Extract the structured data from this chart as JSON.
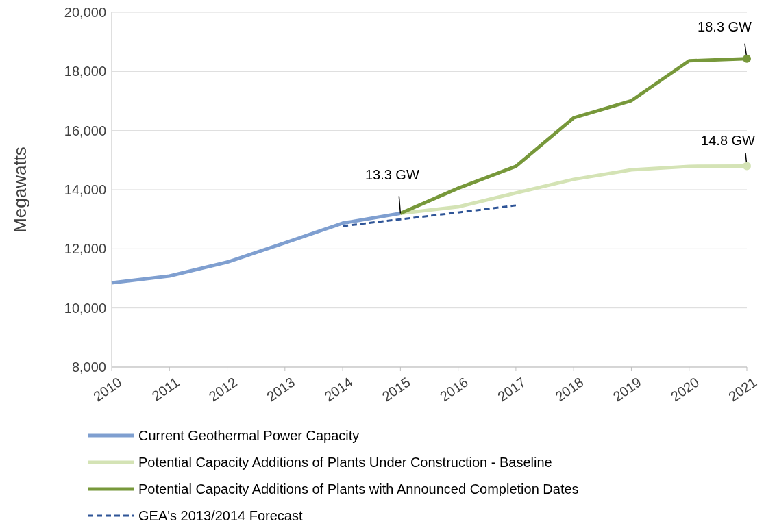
{
  "chart_data": {
    "type": "line",
    "ylabel": "Megawatts",
    "categories": [
      "2010",
      "2011",
      "2012",
      "2013",
      "2014",
      "2015",
      "2016",
      "2017",
      "2018",
      "2019",
      "2020",
      "2021"
    ],
    "ylim": [
      8000,
      20000
    ],
    "yticks": [
      {
        "value": 8000,
        "label": "8,000"
      },
      {
        "value": 10000,
        "label": "10,000"
      },
      {
        "value": 12000,
        "label": "12,000"
      },
      {
        "value": 14000,
        "label": "14,000"
      },
      {
        "value": 16000,
        "label": "16,000"
      },
      {
        "value": 18000,
        "label": "18,000"
      },
      {
        "value": 20000,
        "label": "20,000"
      }
    ],
    "grid": "y",
    "legend": "bottom",
    "series": [
      {
        "name": "Current Geothermal Power Capacity",
        "color": "#7f9fd0",
        "values": [
          10850,
          11080,
          11550,
          12200,
          12870,
          13200,
          null,
          null,
          null,
          null,
          null,
          null
        ]
      },
      {
        "name": "Potential Capacity Additions of Plants Under Construction - Baseline",
        "color": "#d4e3b5",
        "values": [
          null,
          null,
          null,
          null,
          null,
          13200,
          13420,
          13890,
          14350,
          14670,
          14790,
          14800
        ]
      },
      {
        "name": "Potential Capacity Additions of Plants with Announced Completion Dates",
        "color": "#77983a",
        "values": [
          null,
          null,
          null,
          null,
          null,
          13200,
          14050,
          14790,
          16430,
          17010,
          18360,
          18430
        ]
      },
      {
        "name": "GEA's 2013/2014 Forecast",
        "color": "#2f5597",
        "line_style": "dashed",
        "values": [
          null,
          null,
          null,
          null,
          12770,
          13000,
          13230,
          13470,
          null,
          null,
          null,
          null
        ]
      }
    ],
    "annotations": [
      {
        "text": "13.3 GW",
        "x": "2015",
        "y": 13200
      },
      {
        "text": "18.3 GW",
        "x": "2021",
        "y": 18430
      },
      {
        "text": "14.8 GW",
        "x": "2021",
        "y": 14800
      }
    ]
  }
}
